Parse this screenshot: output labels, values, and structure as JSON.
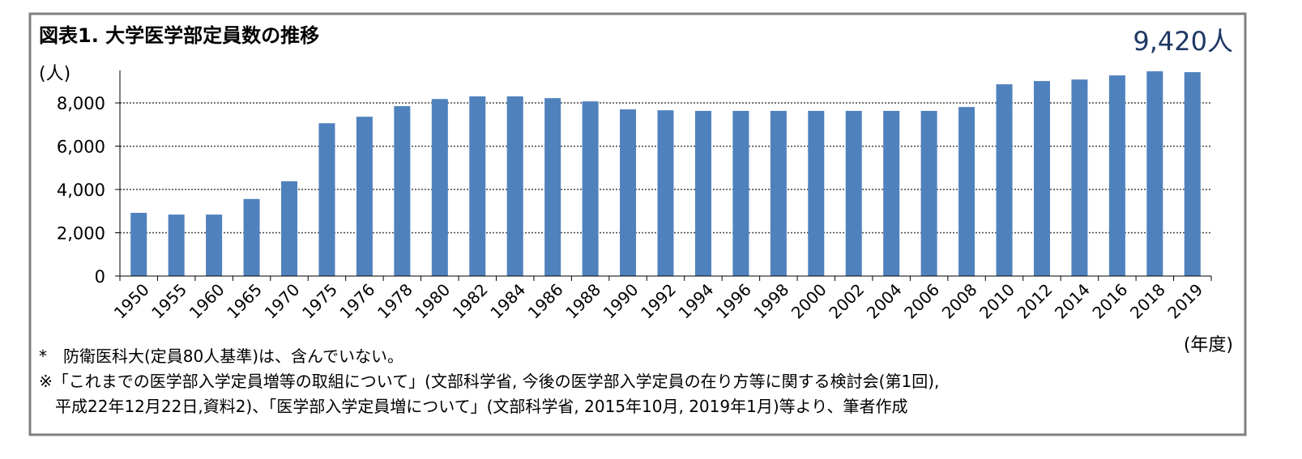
{
  "chart_data": {
    "type": "bar",
    "title": "図表1. 大学医学部定員数の推移",
    "annotation": "9,420人",
    "y_label": "(人)",
    "x_label": "(年度)",
    "categories": [
      "1950",
      "1955",
      "1960",
      "1965",
      "1970",
      "1975",
      "1976",
      "1978",
      "1980",
      "1982",
      "1984",
      "1986",
      "1988",
      "1990",
      "1992",
      "1994",
      "1996",
      "1998",
      "2000",
      "2002",
      "2004",
      "2006",
      "2008",
      "2010",
      "2012",
      "2014",
      "2016",
      "2018",
      "2019"
    ],
    "values": [
      2920,
      2840,
      2840,
      3560,
      4380,
      7060,
      7360,
      7850,
      8180,
      8300,
      8300,
      8220,
      8070,
      7700,
      7660,
      7630,
      7630,
      7630,
      7630,
      7630,
      7630,
      7630,
      7810,
      8860,
      9010,
      9080,
      9270,
      9460,
      9420
    ],
    "color": "#4f81bd",
    "ylim": [
      0,
      9500
    ],
    "yticks": [
      0,
      {
        "value": 2000,
        "label": "2,000"
      },
      {
        "value": 4000,
        "label": "4,000"
      },
      {
        "value": 6000,
        "label": "6,000"
      },
      {
        "value": 8000,
        "label": "8,000"
      }
    ],
    "grid": true,
    "notes": [
      "*　防衛医科大(定員80人基準)は、含んでいない。",
      "※「これまでの医学部入学定員増等の取組について」(文部科学省, 今後の医学部入学定員の在り方等に関する検討会(第1回),",
      "　平成22年12月22日,資料2)、「医学部入学定員増について」(文部科学省, 2015年10月, 2019年1月)等より、筆者作成"
    ]
  }
}
